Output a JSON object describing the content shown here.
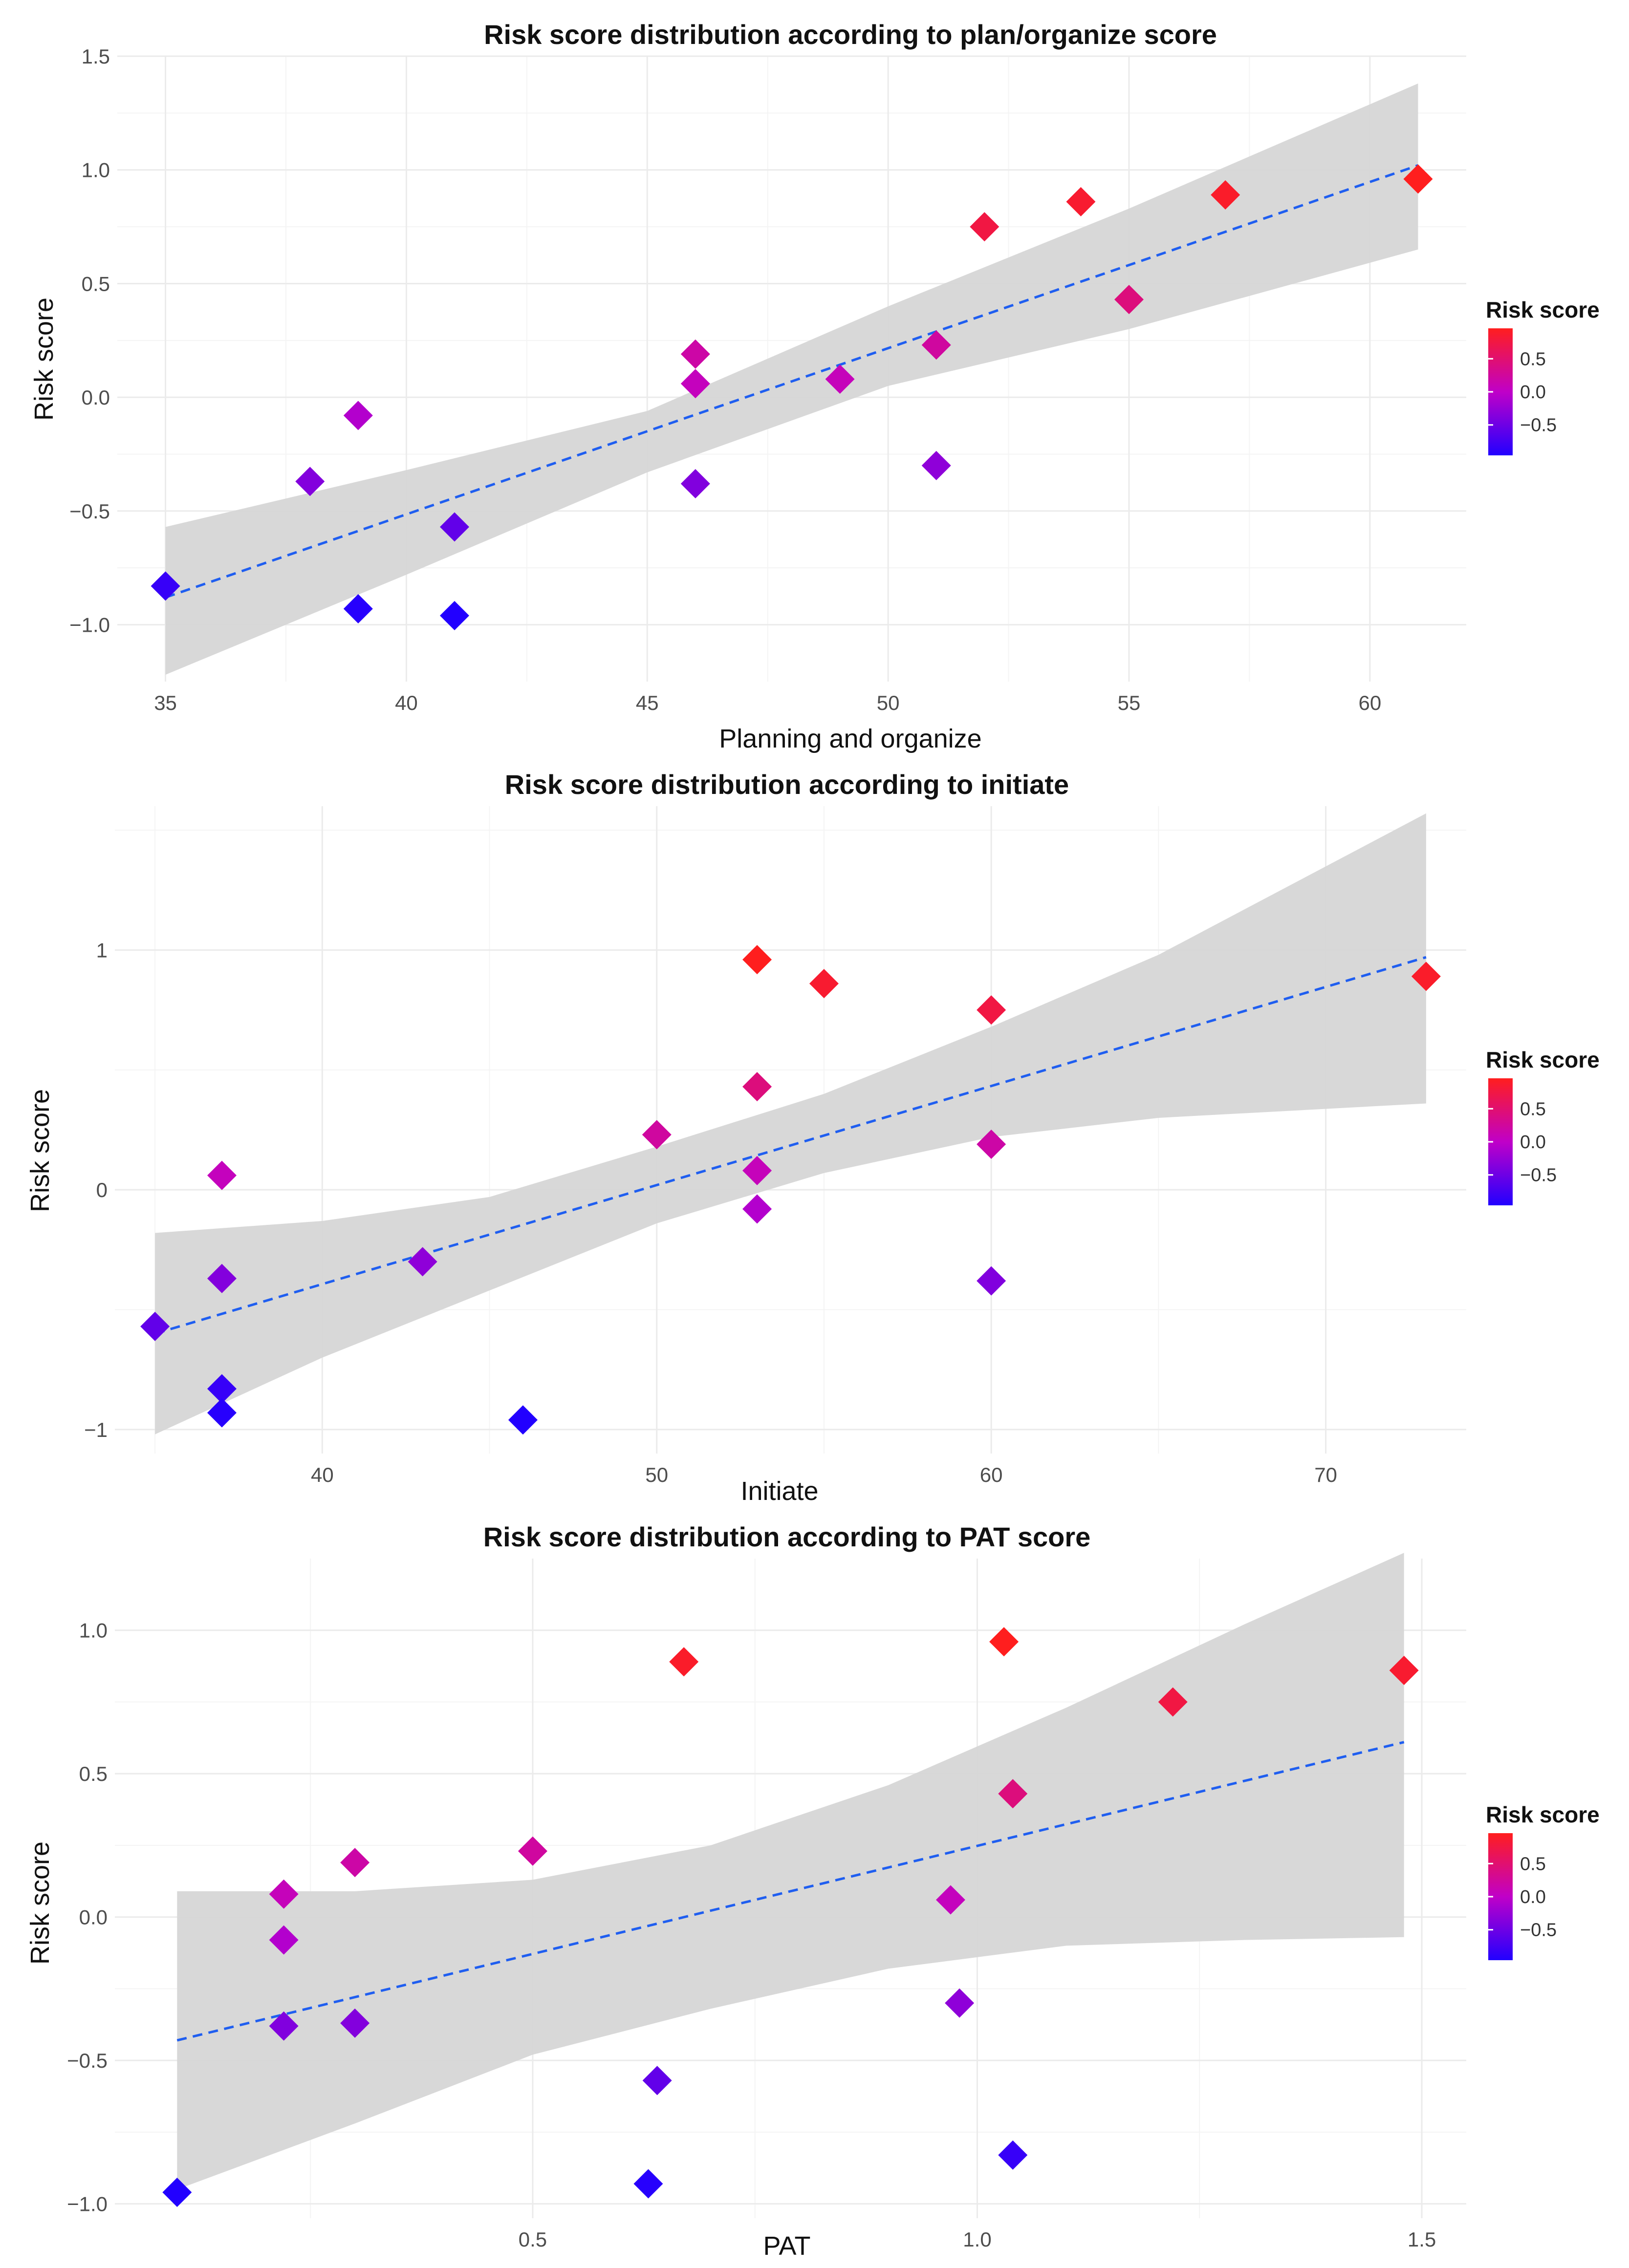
{
  "chart_data": [
    {
      "type": "scatter",
      "title": "Risk score distribution according to plan/organize score",
      "xlabel": "Planning and  organize",
      "ylabel": "Risk score",
      "xlim": [
        34,
        62
      ],
      "ylim": [
        -1.25,
        1.5
      ],
      "xticks": [
        35,
        40,
        45,
        50,
        55,
        60
      ],
      "yticks": [
        -1.0,
        -0.5,
        0.0,
        0.5,
        1.0,
        1.5
      ],
      "xtick_labels": [
        "35",
        "40",
        "45",
        "50",
        "55",
        "60"
      ],
      "ytick_labels": [
        "−1.0",
        "−0.5",
        "0.0",
        "0.5",
        "1.0",
        "1.5"
      ],
      "points": [
        {
          "x": 35,
          "y": -0.83
        },
        {
          "x": 38,
          "y": -0.37
        },
        {
          "x": 39,
          "y": -0.08
        },
        {
          "x": 39,
          "y": -0.93
        },
        {
          "x": 41,
          "y": -0.57
        },
        {
          "x": 41,
          "y": -0.96
        },
        {
          "x": 46,
          "y": 0.19
        },
        {
          "x": 46,
          "y": 0.06
        },
        {
          "x": 46,
          "y": -0.38
        },
        {
          "x": 49,
          "y": 0.08
        },
        {
          "x": 51,
          "y": 0.23
        },
        {
          "x": 51,
          "y": -0.3
        },
        {
          "x": 52,
          "y": 0.75
        },
        {
          "x": 54,
          "y": 0.86
        },
        {
          "x": 55,
          "y": 0.43
        },
        {
          "x": 57,
          "y": 0.89
        },
        {
          "x": 61,
          "y": 0.96
        }
      ],
      "fit_line": [
        [
          35,
          -0.88
        ],
        [
          61,
          1.02
        ]
      ],
      "confidence_band": {
        "x": [
          35,
          40,
          45,
          50,
          55,
          61
        ],
        "lower": [
          -1.22,
          -0.78,
          -0.33,
          0.05,
          0.3,
          0.65
        ],
        "upper": [
          -0.57,
          -0.32,
          -0.06,
          0.4,
          0.83,
          1.38
        ]
      },
      "legend": {
        "title": "Risk score",
        "ticks": [
          0.5,
          0.0,
          -0.5
        ],
        "tick_labels": [
          "0.5",
          "0.0",
          "−0.5"
        ],
        "range": [
          -0.96,
          0.96
        ],
        "position": "right"
      }
    },
    {
      "type": "scatter",
      "title": "Risk score distribution according to initiate",
      "xlabel": "Initiate",
      "ylabel": "Risk score",
      "xlim": [
        33.8,
        74.2
      ],
      "ylim": [
        -1.1,
        1.6
      ],
      "xticks": [
        40,
        50,
        60,
        70
      ],
      "yticks": [
        -1,
        0,
        1
      ],
      "xtick_labels": [
        "40",
        "50",
        "60",
        "70"
      ],
      "ytick_labels": [
        "−1",
        "0",
        "1"
      ],
      "points": [
        {
          "x": 35,
          "y": -0.57
        },
        {
          "x": 37,
          "y": 0.06
        },
        {
          "x": 37,
          "y": -0.37
        },
        {
          "x": 37,
          "y": -0.83
        },
        {
          "x": 37,
          "y": -0.93
        },
        {
          "x": 43,
          "y": -0.3
        },
        {
          "x": 46,
          "y": -0.96
        },
        {
          "x": 50,
          "y": 0.23
        },
        {
          "x": 53,
          "y": 0.96
        },
        {
          "x": 53,
          "y": 0.43
        },
        {
          "x": 53,
          "y": 0.08
        },
        {
          "x": 53,
          "y": -0.08
        },
        {
          "x": 55,
          "y": 0.86
        },
        {
          "x": 60,
          "y": 0.75
        },
        {
          "x": 60,
          "y": 0.19
        },
        {
          "x": 60,
          "y": -0.38
        },
        {
          "x": 73,
          "y": 0.89
        }
      ],
      "fit_line": [
        [
          35,
          -0.6
        ],
        [
          73,
          0.97
        ]
      ],
      "confidence_band": {
        "x": [
          35,
          40,
          45,
          50,
          55,
          60,
          65,
          73
        ],
        "lower": [
          -1.02,
          -0.7,
          -0.42,
          -0.14,
          0.07,
          0.22,
          0.3,
          0.36
        ],
        "upper": [
          -0.18,
          -0.13,
          -0.03,
          0.18,
          0.4,
          0.68,
          0.98,
          1.57
        ]
      },
      "legend": {
        "title": "Risk score",
        "ticks": [
          0.5,
          0.0,
          -0.5
        ],
        "tick_labels": [
          "0.5",
          "0.0",
          "−0.5"
        ],
        "range": [
          -0.96,
          0.96
        ],
        "position": "right"
      }
    },
    {
      "type": "scatter",
      "title": "Risk score distribution according to PAT score",
      "xlabel": "PAT",
      "ylabel": "Risk score",
      "xlim": [
        0.03,
        1.55
      ],
      "ylim": [
        -1.05,
        1.25
      ],
      "xticks": [
        0.5,
        1.0,
        1.5
      ],
      "yticks": [
        -1.0,
        -0.5,
        0.0,
        0.5,
        1.0
      ],
      "xtick_labels": [
        "0.5",
        "1.0",
        "1.5"
      ],
      "ytick_labels": [
        "−1.0",
        "−0.5",
        "0.0",
        "0.5",
        "1.0"
      ],
      "points": [
        {
          "x": 0.1,
          "y": -0.96
        },
        {
          "x": 0.22,
          "y": 0.08
        },
        {
          "x": 0.22,
          "y": -0.08
        },
        {
          "x": 0.22,
          "y": -0.38
        },
        {
          "x": 0.3,
          "y": 0.19
        },
        {
          "x": 0.3,
          "y": -0.37
        },
        {
          "x": 0.5,
          "y": 0.23
        },
        {
          "x": 0.63,
          "y": -0.93
        },
        {
          "x": 0.64,
          "y": -0.57
        },
        {
          "x": 0.67,
          "y": 0.89
        },
        {
          "x": 0.97,
          "y": 0.06
        },
        {
          "x": 0.98,
          "y": -0.3
        },
        {
          "x": 1.03,
          "y": 0.96
        },
        {
          "x": 1.04,
          "y": 0.43
        },
        {
          "x": 1.04,
          "y": -0.83
        },
        {
          "x": 1.22,
          "y": 0.75
        },
        {
          "x": 1.48,
          "y": 0.86
        }
      ],
      "fit_line": [
        [
          0.1,
          -0.43
        ],
        [
          1.48,
          0.61
        ]
      ],
      "confidence_band": {
        "x": [
          0.1,
          0.3,
          0.5,
          0.7,
          0.9,
          1.1,
          1.3,
          1.48
        ],
        "lower": [
          -0.95,
          -0.72,
          -0.48,
          -0.32,
          -0.18,
          -0.1,
          -0.08,
          -0.07
        ],
        "upper": [
          0.09,
          0.09,
          0.13,
          0.25,
          0.46,
          0.73,
          1.02,
          1.27
        ]
      },
      "legend": {
        "title": "Risk score",
        "ticks": [
          0.5,
          0.0,
          -0.5
        ],
        "tick_labels": [
          "0.5",
          "0.0",
          "−0.5"
        ],
        "range": [
          -0.96,
          0.96
        ],
        "position": "right"
      }
    }
  ],
  "colors": {
    "low": "#2200ff",
    "mid": "#c000c8",
    "high": "#ff1e1e",
    "fit_line": "#1f5ef0",
    "band": "#d6d6d6",
    "grid_major": "#ebebeb",
    "grid_minor": "#f4f4f4"
  }
}
